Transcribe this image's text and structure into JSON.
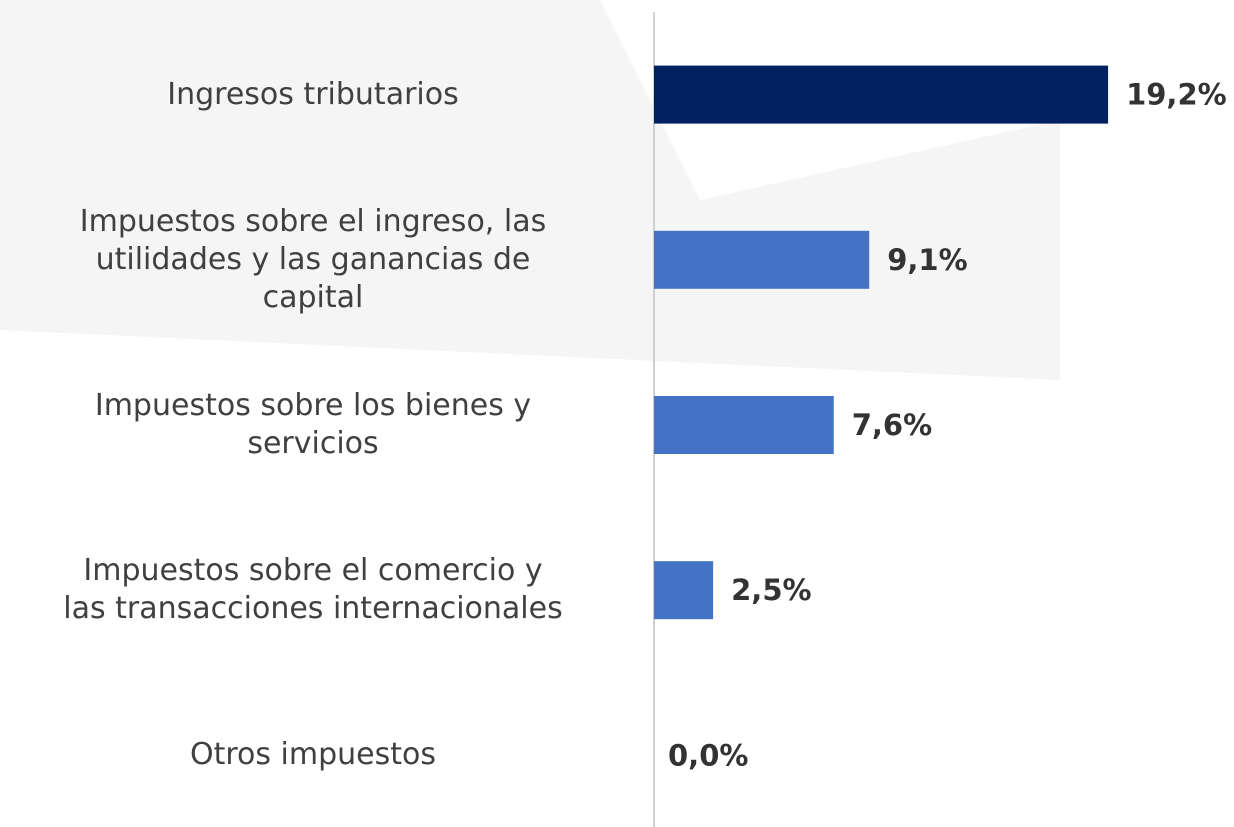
{
  "chart_data": {
    "type": "hbar",
    "categories": [
      "Ingresos tributarios",
      "Impuestos sobre el ingreso, las\nutilidades y las ganancias de\ncapital",
      "Impuestos sobre los bienes y\nservicios",
      "Impuestos sobre el comercio y\nlas transacciones internacionales",
      "Otros impuestos"
    ],
    "values": [
      19.2,
      9.1,
      7.6,
      2.5,
      0.0
    ],
    "value_labels": [
      "19,2%",
      "9,1%",
      "7,6%",
      "2,5%",
      "0,0%"
    ],
    "colors": [
      "#002060",
      "#4472c4",
      "#4472c4",
      "#4472c4",
      "#4472c4"
    ],
    "xlim": [
      0,
      20
    ]
  }
}
